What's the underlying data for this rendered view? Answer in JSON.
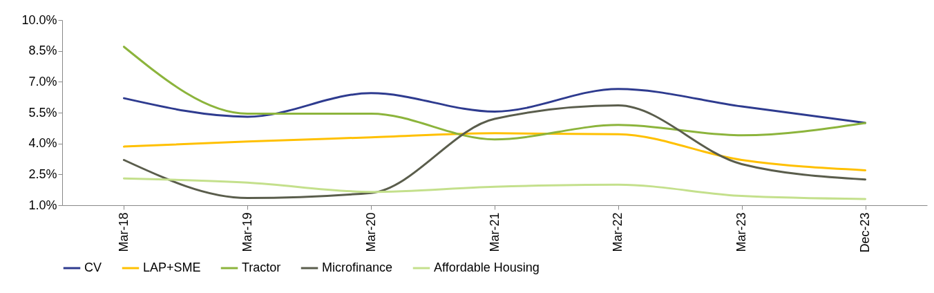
{
  "chart_data": {
    "type": "line",
    "categories": [
      "Mar-18",
      "Mar-19",
      "Mar-20",
      "Mar-21",
      "Mar-22",
      "Mar-23",
      "Dec-23"
    ],
    "series": [
      {
        "name": "CV",
        "color": "#2e3b8f",
        "values": [
          6.2,
          5.3,
          6.45,
          5.55,
          6.65,
          5.8,
          5.0
        ]
      },
      {
        "name": "LAP+SME",
        "color": "#ffc000",
        "values": [
          3.85,
          4.1,
          4.3,
          4.5,
          4.45,
          3.2,
          2.7
        ]
      },
      {
        "name": "Tractor",
        "color": "#8cb43c",
        "values": [
          8.7,
          5.45,
          5.45,
          4.2,
          4.9,
          4.4,
          5.0
        ]
      },
      {
        "name": "Microfinance",
        "color": "#5a5d4c",
        "values": [
          3.2,
          1.35,
          1.6,
          5.2,
          5.85,
          3.0,
          2.25
        ]
      },
      {
        "name": "Affordable Housing",
        "color": "#c4e08c",
        "values": [
          2.3,
          2.1,
          1.65,
          1.9,
          2.0,
          1.45,
          1.3
        ]
      }
    ],
    "ylim": [
      1,
      10
    ],
    "yticks": [
      {
        "value": 1,
        "label": "1.0%"
      },
      {
        "value": 2.5,
        "label": "2.5%"
      },
      {
        "value": 4,
        "label": "4.0%"
      },
      {
        "value": 5.5,
        "label": "5.5%"
      },
      {
        "value": 7,
        "label": "7.0%"
      },
      {
        "value": 8.5,
        "label": "8.5%"
      },
      {
        "value": 10,
        "label": "10.0%"
      }
    ],
    "grid": false,
    "legend": "bottom",
    "marker": "none",
    "line_style": "solid"
  }
}
